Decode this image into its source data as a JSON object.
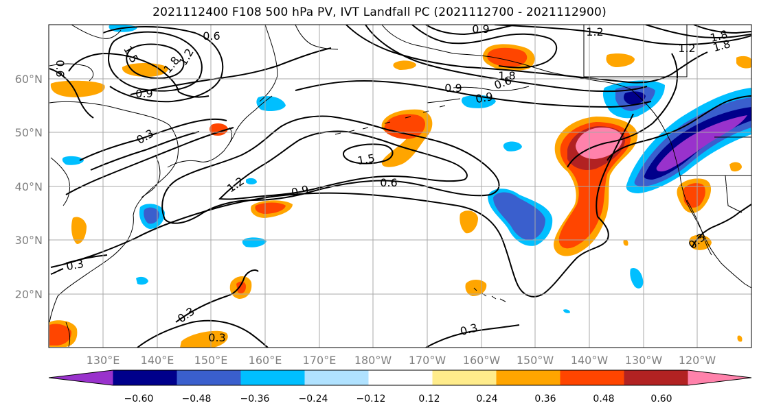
{
  "title": "2021112400 F108 500 hPa PV, IVT Landfall PC (2021112700 - 2021112900)",
  "lat_labels": [
    "60°N",
    "50°N",
    "40°N",
    "30°N",
    "20°N"
  ],
  "lon_labels": [
    "130°E",
    "140°E",
    "150°E",
    "160°E",
    "170°E",
    "180°W",
    "170°W",
    "160°W",
    "150°W",
    "140°W",
    "130°W",
    "120°W"
  ],
  "contour_labels": [
    "0.6",
    "1.2",
    "1.8",
    "0.6",
    "1.5",
    "0.9",
    "0.3",
    "0.9",
    "1.2",
    "1.5",
    "0.9",
    "0.6",
    "0.3",
    "0.3",
    "0.3",
    "0.3",
    "0.9",
    "1.8",
    "0.9",
    "0.6",
    "1.2",
    "1.2",
    "1.8",
    "1.8",
    "0.3"
  ],
  "colorbar": {
    "ticks": [
      "−0.60",
      "−0.48",
      "−0.36",
      "−0.24",
      "−0.12",
      "0.12",
      "0.24",
      "0.36",
      "0.48",
      "0.60"
    ],
    "colors": [
      "#9932cc",
      "#00008b",
      "#3a5fcd",
      "#00bfff",
      "#b0e2ff",
      "#ffffff",
      "#ffec8b",
      "#ffa500",
      "#ff4500",
      "#b22222",
      "#ff82ab"
    ],
    "extend": "both"
  },
  "map": {
    "lat_range": [
      "10°N",
      "70°N"
    ],
    "lon_range": [
      "120°E",
      "110°W"
    ],
    "grid": true
  }
}
